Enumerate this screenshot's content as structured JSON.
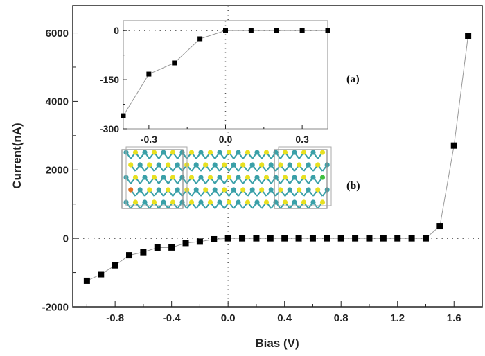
{
  "chart_data": [
    {
      "type": "scatter",
      "xlabel": "Bias (V)",
      "ylabel": "Current(nA)",
      "xlim": [
        -1.1,
        1.8
      ],
      "ylim": [
        -2000,
        6800
      ],
      "xticks": [
        "-0.8",
        "-0.4",
        "0.0",
        "0.4",
        "0.8",
        "1.2",
        "1.6"
      ],
      "yticks": [
        "-2000",
        "0",
        "2000",
        "4000",
        "6000"
      ],
      "grid": false,
      "reference_lines": "dotted at x=0 and y=0",
      "marker": "square",
      "line": "thin gray connecting line",
      "x": [
        -1.0,
        -0.9,
        -0.8,
        -0.7,
        -0.6,
        -0.5,
        -0.4,
        -0.3,
        -0.2,
        -0.1,
        0.0,
        0.1,
        0.2,
        0.3,
        0.4,
        0.5,
        0.6,
        0.7,
        0.8,
        0.9,
        1.0,
        1.1,
        1.2,
        1.3,
        1.4,
        1.5,
        1.6,
        1.7
      ],
      "y": [
        -1240,
        -1050,
        -790,
        -495,
        -405,
        -270,
        -268,
        -137,
        -96,
        -27,
        0,
        0,
        0,
        0,
        0,
        0,
        0,
        0,
        0,
        0,
        0,
        0,
        0,
        0,
        0,
        356,
        2710,
        5920
      ]
    },
    {
      "type": "scatter",
      "panel": "inset",
      "xlim": [
        -0.4,
        0.4
      ],
      "ylim": [
        -300,
        30
      ],
      "xticks": [
        "-0.3",
        "0.0",
        "0.3"
      ],
      "yticks": [
        "-300",
        "-150",
        "0"
      ],
      "marker": "square",
      "x": [
        -0.4,
        -0.3,
        -0.2,
        -0.1,
        0.0,
        0.1,
        0.2,
        0.3,
        0.4
      ],
      "y": [
        -260,
        -133,
        -99,
        -25,
        0,
        0,
        0,
        0,
        0
      ]
    }
  ],
  "annotations": {
    "a": "(a)",
    "b": "(b)"
  },
  "colors": {
    "marker": "#000000",
    "line": "#999999",
    "atom_yellow": "#e8e020",
    "atom_teal": "#3aa0a8",
    "atom_orange": "#e07020",
    "atom_green": "#40c040"
  }
}
